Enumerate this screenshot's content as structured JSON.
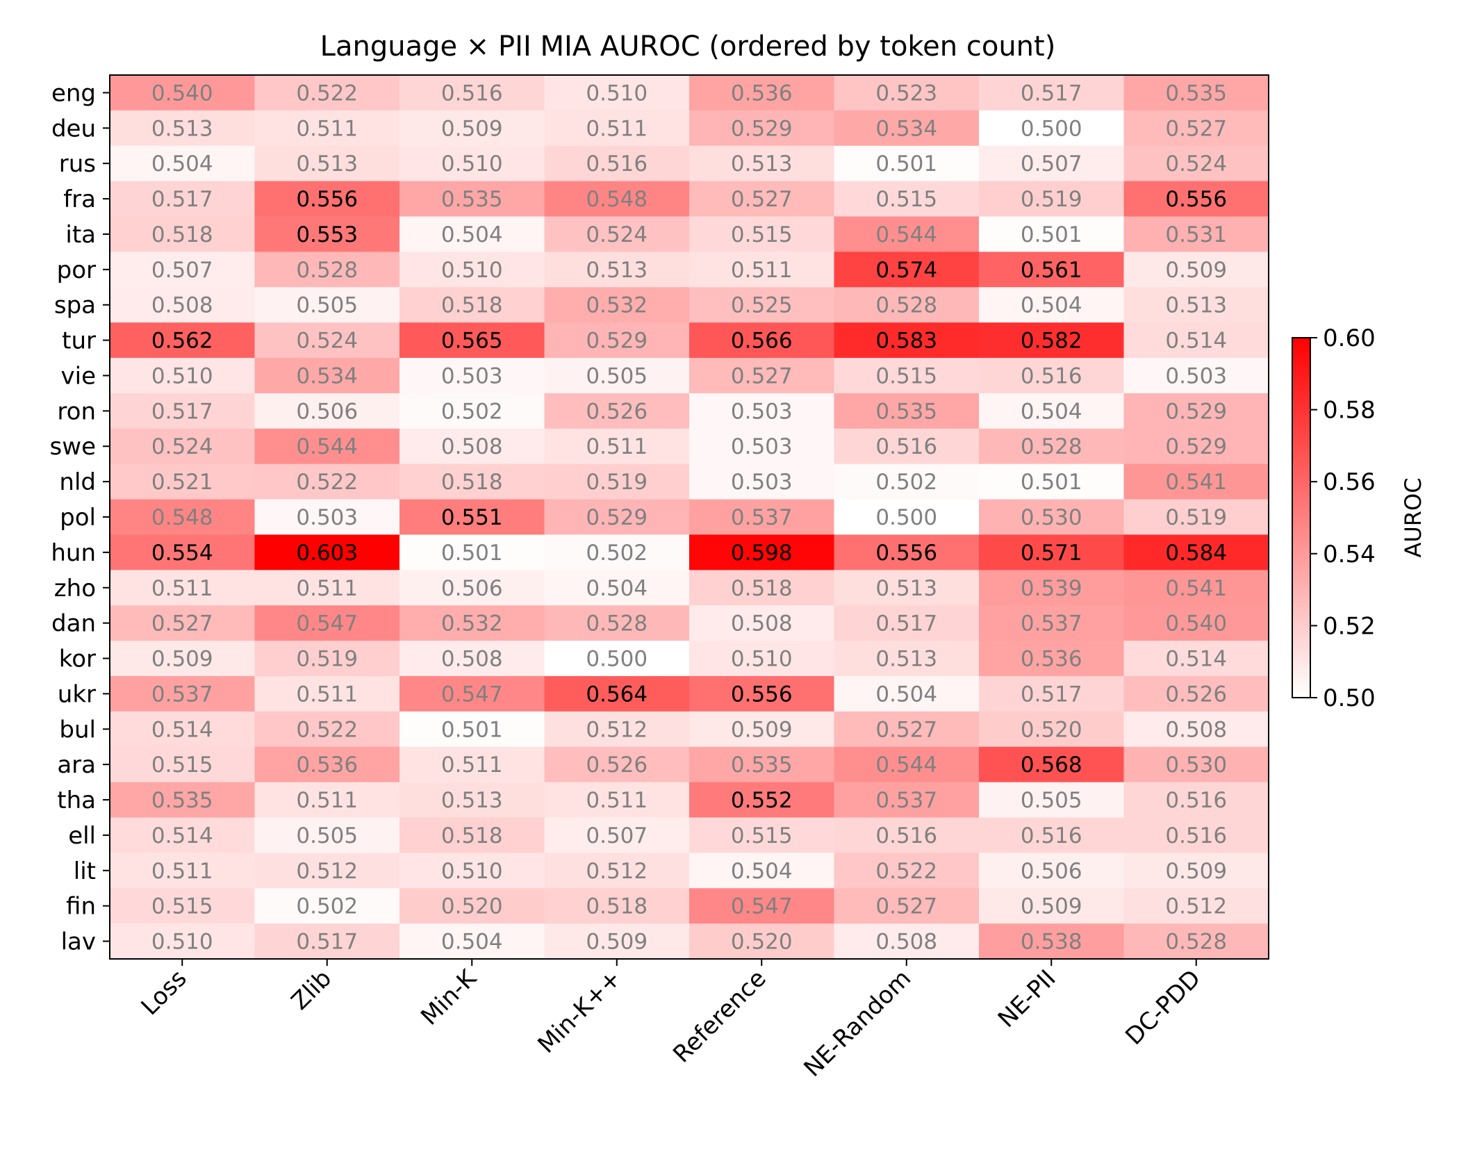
{
  "chart_data": {
    "type": "heatmap",
    "title": "Language × PII MIA AUROC (ordered by token count)",
    "xlabel": "",
    "ylabel": "",
    "columns": [
      "Loss",
      "Zlib",
      "Min-K",
      "Min-K++",
      "Reference",
      "NE-Random",
      "NE-PII",
      "DC-PDD"
    ],
    "rows": [
      "eng",
      "deu",
      "rus",
      "fra",
      "ita",
      "por",
      "spa",
      "tur",
      "vie",
      "ron",
      "swe",
      "nld",
      "pol",
      "hun",
      "zho",
      "dan",
      "kor",
      "ukr",
      "bul",
      "ara",
      "tha",
      "ell",
      "lit",
      "fin",
      "lav"
    ],
    "values": [
      [
        0.54,
        0.522,
        0.516,
        0.51,
        0.536,
        0.523,
        0.517,
        0.535
      ],
      [
        0.513,
        0.511,
        0.509,
        0.511,
        0.529,
        0.534,
        0.5,
        0.527
      ],
      [
        0.504,
        0.513,
        0.51,
        0.516,
        0.513,
        0.501,
        0.507,
        0.524
      ],
      [
        0.517,
        0.556,
        0.535,
        0.548,
        0.527,
        0.515,
        0.519,
        0.556
      ],
      [
        0.518,
        0.553,
        0.504,
        0.524,
        0.515,
        0.544,
        0.501,
        0.531
      ],
      [
        0.507,
        0.528,
        0.51,
        0.513,
        0.511,
        0.574,
        0.561,
        0.509
      ],
      [
        0.508,
        0.505,
        0.518,
        0.532,
        0.525,
        0.528,
        0.504,
        0.513
      ],
      [
        0.562,
        0.524,
        0.565,
        0.529,
        0.566,
        0.583,
        0.582,
        0.514
      ],
      [
        0.51,
        0.534,
        0.503,
        0.505,
        0.527,
        0.515,
        0.516,
        0.503
      ],
      [
        0.517,
        0.506,
        0.502,
        0.526,
        0.503,
        0.535,
        0.504,
        0.529
      ],
      [
        0.524,
        0.544,
        0.508,
        0.511,
        0.503,
        0.516,
        0.528,
        0.529
      ],
      [
        0.521,
        0.522,
        0.518,
        0.519,
        0.503,
        0.502,
        0.501,
        0.541
      ],
      [
        0.548,
        0.503,
        0.551,
        0.529,
        0.537,
        0.5,
        0.53,
        0.519
      ],
      [
        0.554,
        0.603,
        0.501,
        0.502,
        0.598,
        0.556,
        0.571,
        0.584
      ],
      [
        0.511,
        0.511,
        0.506,
        0.504,
        0.518,
        0.513,
        0.539,
        0.541
      ],
      [
        0.527,
        0.547,
        0.532,
        0.528,
        0.508,
        0.517,
        0.537,
        0.54
      ],
      [
        0.509,
        0.519,
        0.508,
        0.5,
        0.51,
        0.513,
        0.536,
        0.514
      ],
      [
        0.537,
        0.511,
        0.547,
        0.564,
        0.556,
        0.504,
        0.517,
        0.526
      ],
      [
        0.514,
        0.522,
        0.501,
        0.512,
        0.509,
        0.527,
        0.52,
        0.508
      ],
      [
        0.515,
        0.536,
        0.511,
        0.526,
        0.535,
        0.544,
        0.568,
        0.53
      ],
      [
        0.535,
        0.511,
        0.513,
        0.511,
        0.552,
        0.537,
        0.505,
        0.516
      ],
      [
        0.514,
        0.505,
        0.518,
        0.507,
        0.515,
        0.516,
        0.516,
        0.516
      ],
      [
        0.511,
        0.512,
        0.51,
        0.512,
        0.504,
        0.522,
        0.506,
        0.509
      ],
      [
        0.515,
        0.502,
        0.52,
        0.518,
        0.547,
        0.527,
        0.509,
        0.512
      ],
      [
        0.51,
        0.517,
        0.504,
        0.509,
        0.52,
        0.508,
        0.538,
        0.528
      ]
    ],
    "colorbar": {
      "label": "AUROC",
      "range": [
        0.5,
        0.6
      ],
      "ticks": [
        "0.50",
        "0.52",
        "0.54",
        "0.56",
        "0.58",
        "0.60"
      ],
      "color_low": "#ffffff",
      "color_high": "#ff0000"
    },
    "annotation_colors": {
      "strong": "#000000",
      "weak": "#808080",
      "strong_threshold": 0.55
    }
  }
}
